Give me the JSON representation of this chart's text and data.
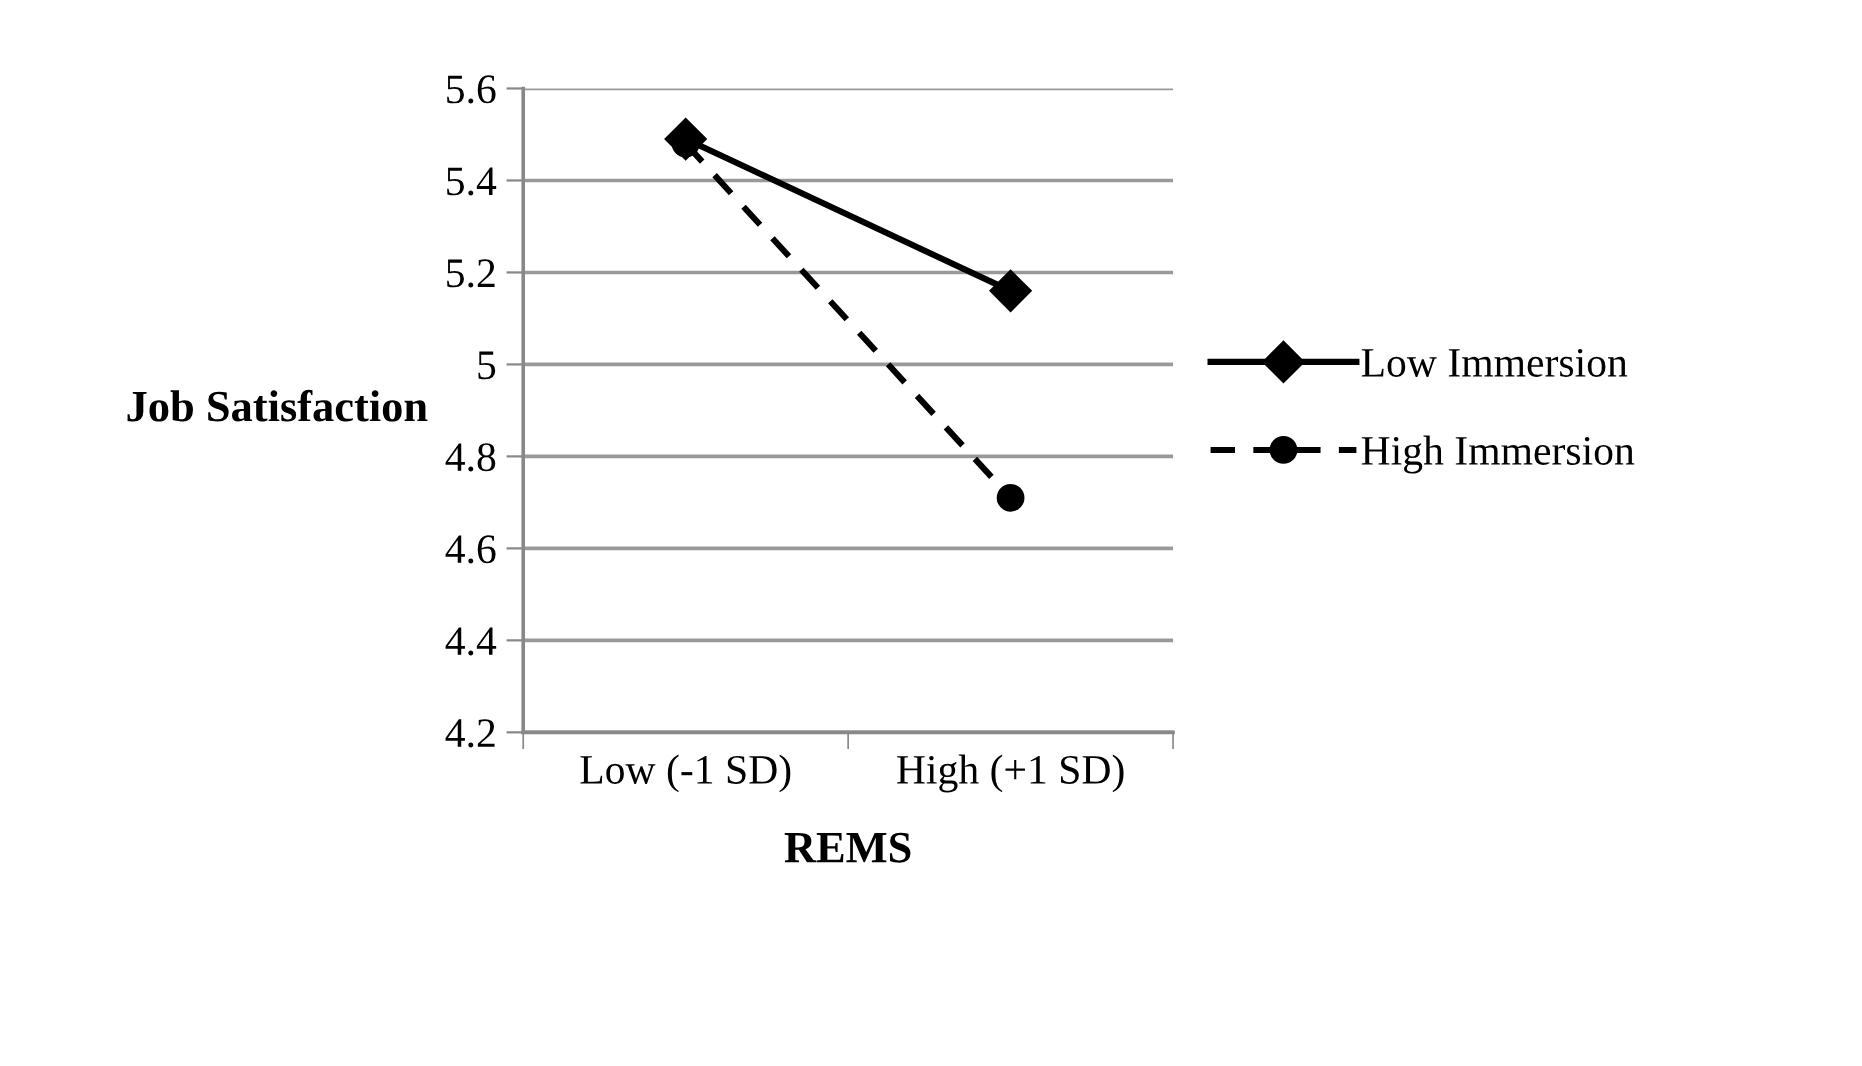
{
  "chart_data": {
    "type": "line",
    "xlabel": "REMS",
    "ylabel": "Job Satisfaction",
    "categories": [
      "Low (-1 SD)",
      "High (+1 SD)"
    ],
    "series": [
      {
        "name": "Low Immersion",
        "color": "#000000",
        "values": [
          5.49,
          5.16
        ],
        "marker": "diamond",
        "line_style": "solid"
      },
      {
        "name": "High Immersion",
        "color": "#000000",
        "values": [
          5.48,
          4.71
        ],
        "marker": "circle",
        "line_style": "dashed"
      }
    ],
    "ylim": [
      4.2,
      5.6
    ],
    "yticks": [
      4.2,
      4.4,
      4.6,
      4.8,
      5,
      5.2,
      5.4,
      5.6
    ],
    "grid": "y",
    "legend": "right"
  }
}
